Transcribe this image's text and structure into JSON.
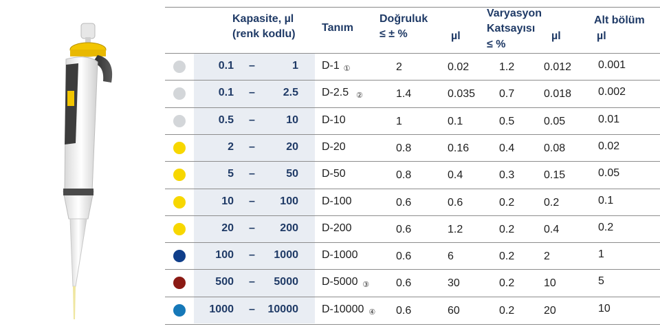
{
  "header": {
    "capacity_line1": "Kapasite, µl",
    "capacity_line2": "(renk kodlu)",
    "designation": "Tanım",
    "accuracy_line1": "Doğruluk",
    "accuracy_line2": "≤ ± %",
    "accuracy_unit": "µl",
    "cv_line1": "Varyasyon",
    "cv_line2": "Katsayısı",
    "cv_line3": "≤ %",
    "cv_unit": "µl",
    "subdivision_line1": "Alt bölüm",
    "subdivision_line2": "µl"
  },
  "dash": "–",
  "rows": [
    {
      "color": "#d3d6d9",
      "cap_min": "0.1",
      "cap_max": "1",
      "designation": "D-1",
      "footnote": "①",
      "acc_pct": "2",
      "acc_ul": "0.02",
      "cv_pct": "1.2",
      "cv_ul": "0.012",
      "subdivision": "0.001"
    },
    {
      "color": "#d3d6d9",
      "cap_min": "0.1",
      "cap_max": "2.5",
      "designation": "D-2.5",
      "footnote": "②",
      "acc_pct": "1.4",
      "acc_ul": "0.035",
      "cv_pct": "0.7",
      "cv_ul": "0.018",
      "subdivision": "0.002"
    },
    {
      "color": "#d3d6d9",
      "cap_min": "0.5",
      "cap_max": "10",
      "designation": "D-10",
      "footnote": "",
      "acc_pct": "1",
      "acc_ul": "0.1",
      "cv_pct": "0.5",
      "cv_ul": "0.05",
      "subdivision": "0.01"
    },
    {
      "color": "#f7d700",
      "cap_min": "2",
      "cap_max": "20",
      "designation": "D-20",
      "footnote": "",
      "acc_pct": "0.8",
      "acc_ul": "0.16",
      "cv_pct": "0.4",
      "cv_ul": "0.08",
      "subdivision": "0.02"
    },
    {
      "color": "#f7d700",
      "cap_min": "5",
      "cap_max": "50",
      "designation": "D-50",
      "footnote": "",
      "acc_pct": "0.8",
      "acc_ul": "0.4",
      "cv_pct": "0.3",
      "cv_ul": "0.15",
      "subdivision": "0.05"
    },
    {
      "color": "#f7d700",
      "cap_min": "10",
      "cap_max": "100",
      "designation": "D-100",
      "footnote": "",
      "acc_pct": "0.6",
      "acc_ul": "0.6",
      "cv_pct": "0.2",
      "cv_ul": "0.2",
      "subdivision": "0.1"
    },
    {
      "color": "#f7d700",
      "cap_min": "20",
      "cap_max": "200",
      "designation": "D-200",
      "footnote": "",
      "acc_pct": "0.6",
      "acc_ul": "1.2",
      "cv_pct": "0.2",
      "cv_ul": "0.4",
      "subdivision": "0.2"
    },
    {
      "color": "#0f3e8a",
      "cap_min": "100",
      "cap_max": "1000",
      "designation": "D-1000",
      "footnote": "",
      "acc_pct": "0.6",
      "acc_ul": "6",
      "cv_pct": "0.2",
      "cv_ul": "2",
      "subdivision": "1"
    },
    {
      "color": "#8b1a14",
      "cap_min": "500",
      "cap_max": "5000",
      "designation": "D-5000",
      "footnote": "③",
      "acc_pct": "0.6",
      "acc_ul": "30",
      "cv_pct": "0.2",
      "cv_ul": "10",
      "subdivision": "5"
    },
    {
      "color": "#1678b8",
      "cap_min": "1000",
      "cap_max": "10000",
      "designation": "D-10000",
      "footnote": "④",
      "acc_pct": "0.6",
      "acc_ul": "60",
      "cv_pct": "0.2",
      "cv_ul": "20",
      "subdivision": "10"
    }
  ]
}
